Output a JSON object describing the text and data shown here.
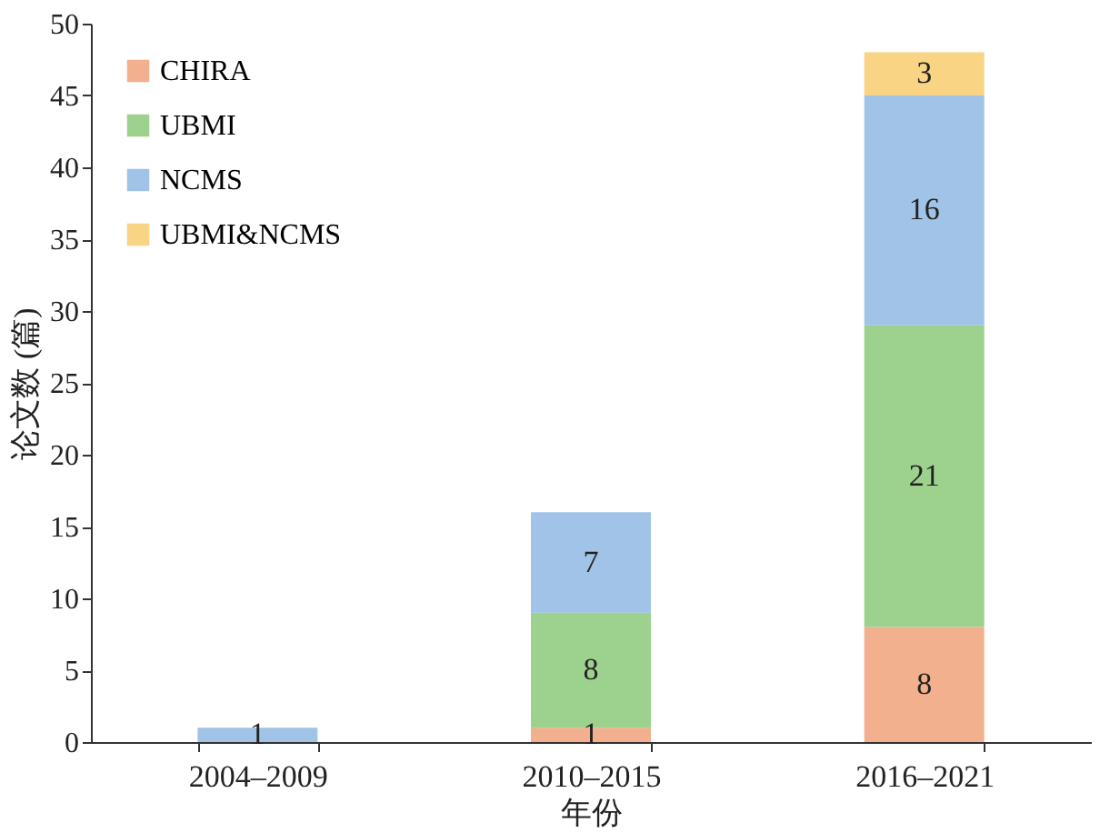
{
  "chart_data": {
    "type": "bar",
    "stacked": true,
    "xlabel": "年份",
    "ylabel": "论文数 (篇)",
    "categories": [
      "2004–2009",
      "2010–2015",
      "2016–2021"
    ],
    "series": [
      {
        "name": "CHIRA",
        "color": "#f0a27a",
        "values": [
          0,
          1,
          8
        ],
        "value_labels": [
          null,
          "1",
          "8"
        ]
      },
      {
        "name": "UBMI",
        "color": "#8cc97a",
        "values": [
          0,
          8,
          21
        ],
        "value_labels": [
          null,
          "8",
          "21"
        ]
      },
      {
        "name": "NCMS",
        "color": "#8fb8e3",
        "values": [
          1,
          7,
          16
        ],
        "value_labels": [
          "1",
          "7",
          "16"
        ]
      },
      {
        "name": "UBMI&NCMS",
        "color": "#f7cc6e",
        "values": [
          0,
          0,
          3
        ],
        "value_labels": [
          null,
          null,
          "3"
        ]
      }
    ],
    "ylim": [
      0,
      50
    ],
    "yticks": [
      0,
      5,
      10,
      15,
      20,
      25,
      30,
      35,
      40,
      45,
      50
    ],
    "grid": false,
    "legend": "top left"
  }
}
